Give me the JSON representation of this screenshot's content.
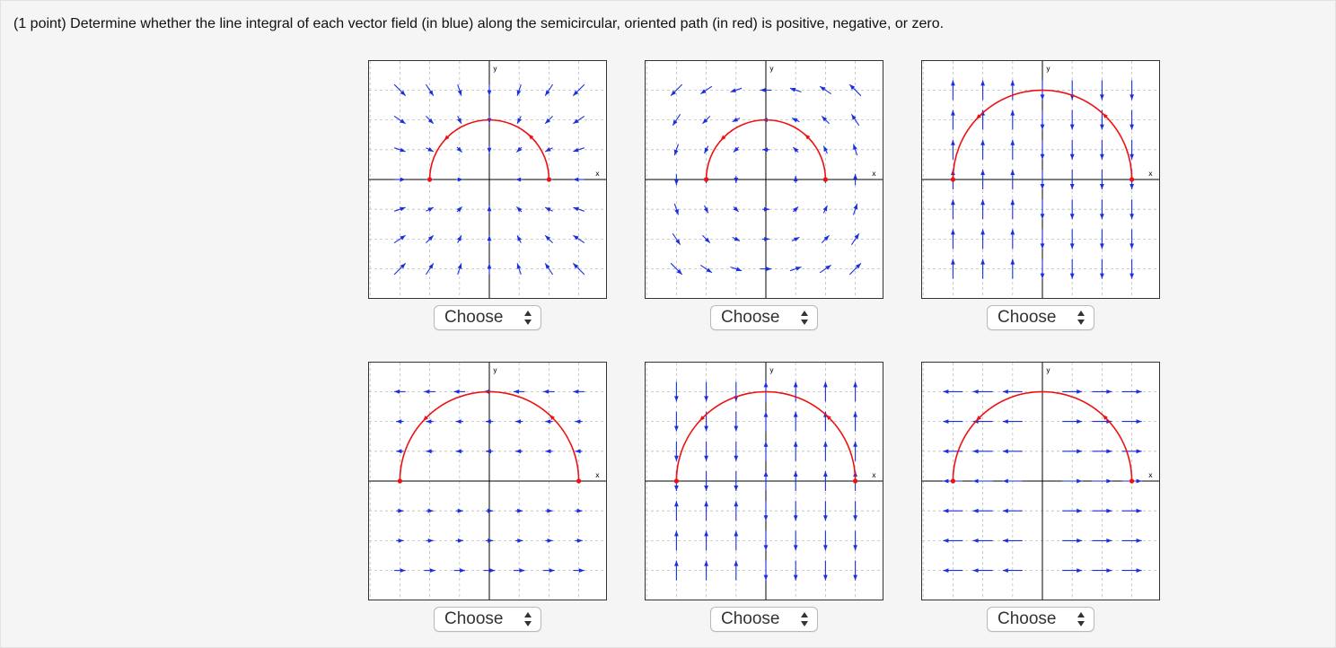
{
  "question": "(1 point) Determine whether the line integral of each vector field (in blue) along the semicircular, oriented path (in red) is positive, negative, or zero.",
  "axis_labels": {
    "x": "x",
    "y": "y"
  },
  "colors": {
    "field": "#1a2fe0",
    "path": "#ee1111",
    "grid": "#bdbdbd",
    "axis": "#000000"
  },
  "select_options": [
    "Choose"
  ],
  "plots": [
    {
      "field": "radial-inward",
      "path_radius": "small",
      "select": "Choose"
    },
    {
      "field": "rotation-ccw",
      "path_radius": "small",
      "select": "Choose"
    },
    {
      "field": "vertical-sign-x",
      "path_radius": "large",
      "select": "Choose"
    },
    {
      "field": "horizontal-minus-y",
      "path_radius": "large",
      "select": "Choose"
    },
    {
      "field": "vertical-sign-x-strong",
      "path_radius": "large",
      "select": "Choose"
    },
    {
      "field": "horizontal-x",
      "path_radius": "large",
      "select": "Choose"
    }
  ]
}
